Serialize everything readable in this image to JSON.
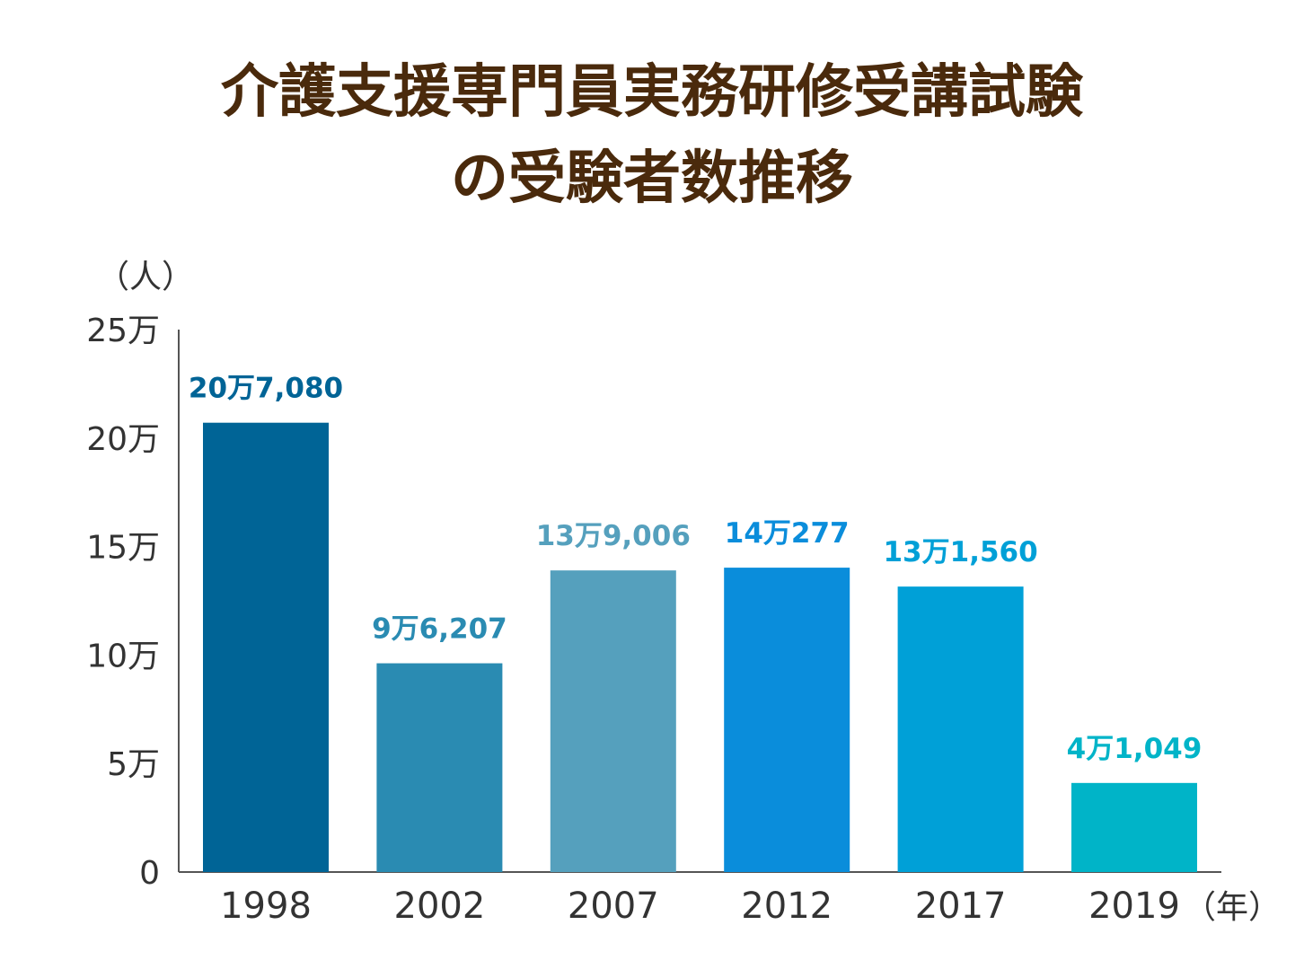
{
  "chart_data": {
    "type": "bar",
    "title_lines": [
      "介護支援専門員実務研修受講試験",
      "の受験者数推移"
    ],
    "y_unit": "（人）",
    "x_unit": "（年）",
    "ylim": [
      0,
      250000
    ],
    "y_ticks": [
      {
        "value": 0,
        "label": "0"
      },
      {
        "value": 50000,
        "label": "5万"
      },
      {
        "value": 100000,
        "label": "10万"
      },
      {
        "value": 150000,
        "label": "15万"
      },
      {
        "value": 200000,
        "label": "20万"
      },
      {
        "value": 250000,
        "label": "25万"
      }
    ],
    "categories": [
      "1998",
      "2002",
      "2007",
      "2012",
      "2017",
      "2019"
    ],
    "values": [
      207080,
      96207,
      139006,
      140277,
      131560,
      41049
    ],
    "value_labels": [
      "20万7,080",
      "9万6,207",
      "13万9,006",
      "14万277",
      "13万1,560",
      "4万1,049"
    ],
    "bar_colors": [
      "#006496",
      "#2a8bb2",
      "#55a0bd",
      "#0a8ddb",
      "#00a0d7",
      "#00b4c8"
    ],
    "label_colors": [
      "#006496",
      "#2a8bb2",
      "#55a0bd",
      "#0a8ddb",
      "#00a0d7",
      "#00b4c8"
    ],
    "grid": false,
    "legend": "none"
  }
}
